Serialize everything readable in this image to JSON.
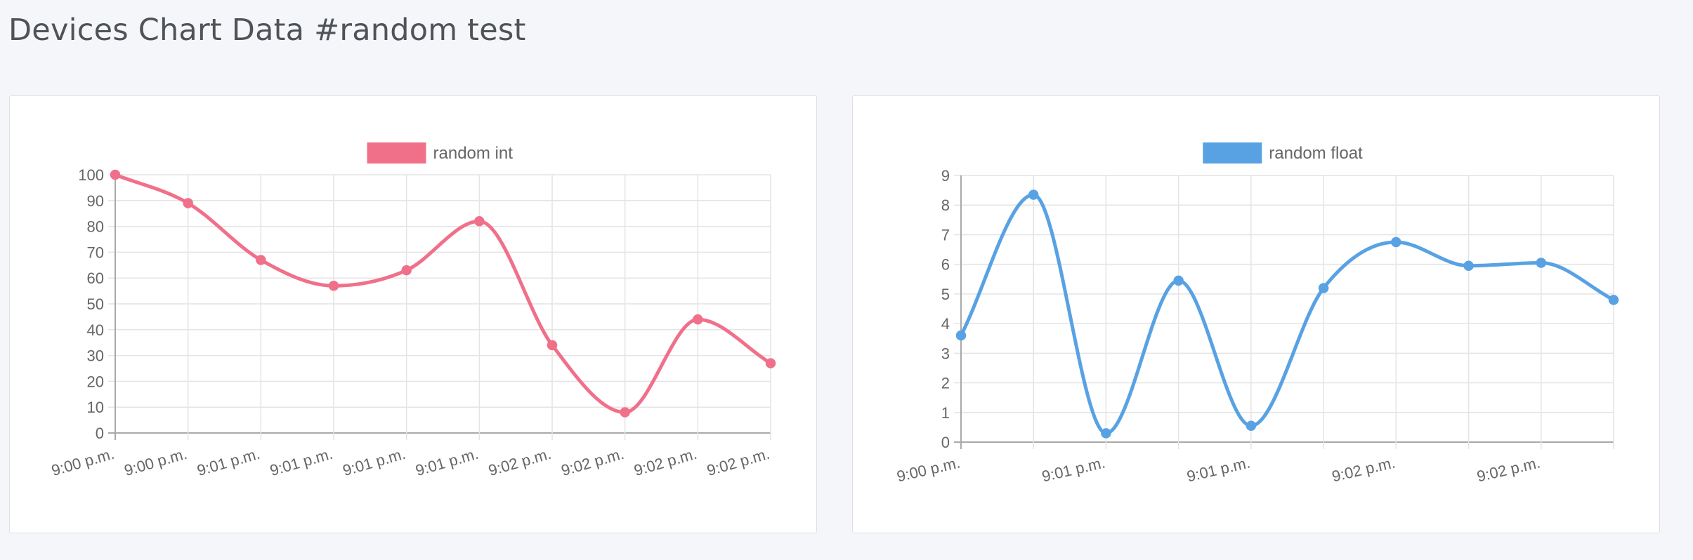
{
  "page": {
    "title": "Devices Chart Data #random test"
  },
  "chart_data": [
    {
      "type": "line",
      "legend_position": "top-center",
      "grid": true,
      "ylim": [
        0,
        100
      ],
      "y_ticks": [
        0,
        10,
        20,
        30,
        40,
        50,
        60,
        70,
        80,
        90,
        100
      ],
      "categories": [
        "9:00 p.m.",
        "9:00 p.m.",
        "9:01 p.m.",
        "9:01 p.m.",
        "9:01 p.m.",
        "9:01 p.m.",
        "9:02 p.m.",
        "9:02 p.m.",
        "9:02 p.m.",
        "9:02 p.m."
      ],
      "x_tick_labels": [
        "9:00 p.m.",
        "9:00 p.m.",
        "9:01 p.m.",
        "9:01 p.m.",
        "9:01 p.m.",
        "9:01 p.m.",
        "9:02 p.m.",
        "9:02 p.m.",
        "9:02 p.m.",
        "9:02 p.m."
      ],
      "series": [
        {
          "name": "random int",
          "color": "#f0708a",
          "values": [
            100,
            89,
            67,
            57,
            63,
            82,
            34,
            8,
            44,
            27
          ]
        }
      ]
    },
    {
      "type": "line",
      "legend_position": "top-center",
      "grid": true,
      "ylim": [
        0,
        9
      ],
      "y_ticks": [
        0,
        1,
        2,
        3,
        4,
        5,
        6,
        7,
        8,
        9
      ],
      "categories": [
        "9:00 p.m.",
        "9:00 p.m.",
        "9:01 p.m.",
        "9:01 p.m.",
        "9:01 p.m.",
        "9:02 p.m.",
        "9:02 p.m.",
        "9:02 p.m.",
        "9:02 p.m.",
        "9:02 p.m."
      ],
      "x_tick_labels": [
        "9:00 p.m.",
        "",
        "9:01 p.m.",
        "",
        "9:01 p.m.",
        "",
        "9:02 p.m.",
        "",
        "9:02 p.m.",
        ""
      ],
      "series": [
        {
          "name": "random float",
          "color": "#58a2e4",
          "values": [
            3.6,
            8.35,
            0.3,
            5.45,
            0.55,
            5.2,
            6.75,
            5.95,
            6.05,
            4.8
          ]
        }
      ]
    }
  ]
}
